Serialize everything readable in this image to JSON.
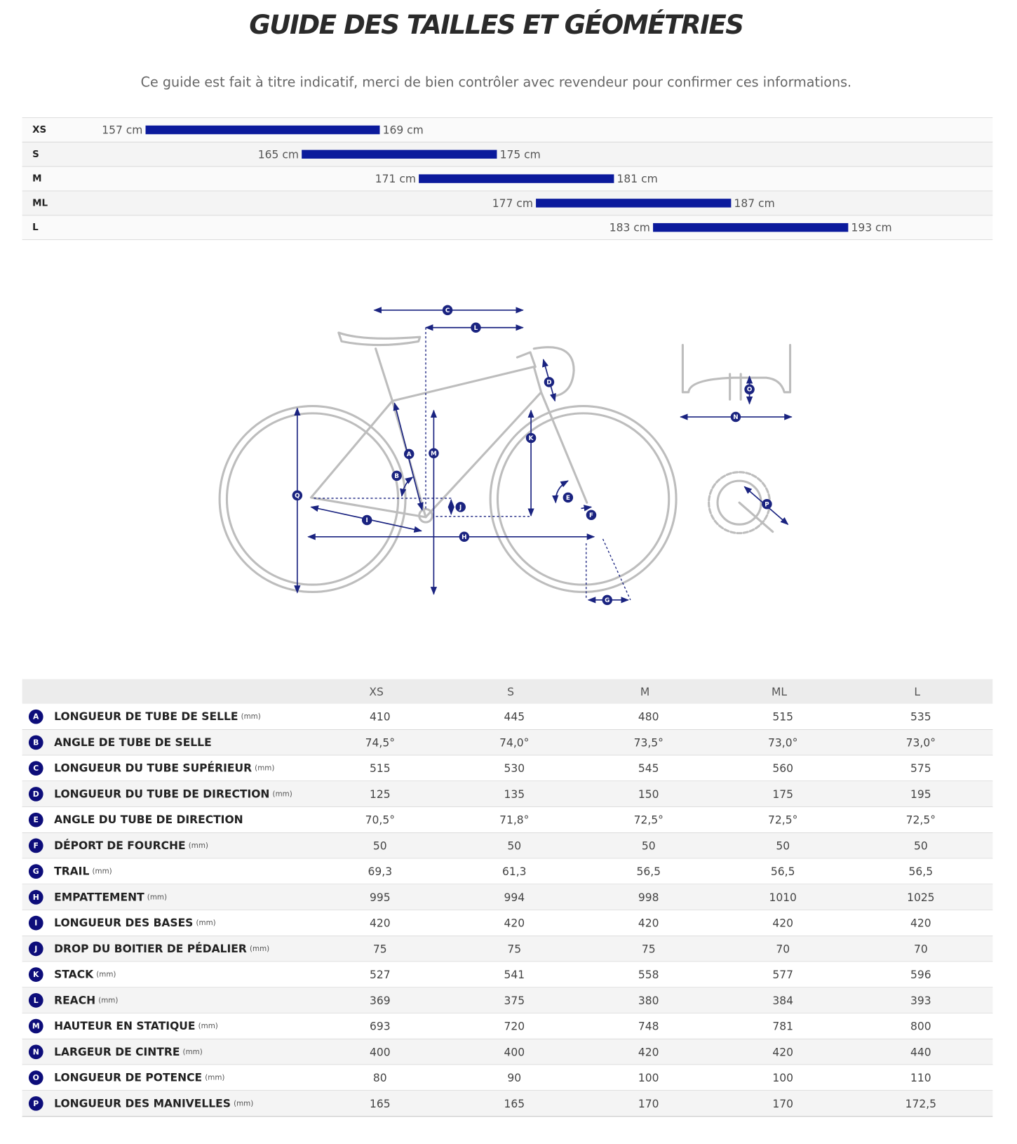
{
  "header": {
    "title": "GUIDE DES TAILLES ET GÉOMÉTRIES",
    "subtitle": "Ce guide est fait à titre indicatif, merci de bien contrôler avec revendeur pour confirmer ces informations."
  },
  "sizes": [
    {
      "size": "XS",
      "from": {
        "value": 157,
        "label": "157 cm"
      },
      "to": {
        "value": 169,
        "label": "169 cm"
      }
    },
    {
      "size": "S",
      "from": {
        "value": 165,
        "label": "165 cm"
      },
      "to": {
        "value": 175,
        "label": "175 cm"
      }
    },
    {
      "size": "M",
      "from": {
        "value": 171,
        "label": "171 cm"
      },
      "to": {
        "value": 181,
        "label": "181 cm"
      }
    },
    {
      "size": "ML",
      "from": {
        "value": 177,
        "label": "177 cm"
      },
      "to": {
        "value": 187,
        "label": "187 cm"
      }
    },
    {
      "size": "L",
      "from": {
        "value": 183,
        "label": "183 cm"
      },
      "to": {
        "value": 193,
        "label": "193 cm"
      }
    }
  ],
  "diagram": {
    "extra_labels": [
      "Q"
    ]
  },
  "table": {
    "columns": [
      "XS",
      "S",
      "M",
      "ML",
      "L"
    ],
    "rows": [
      {
        "letter": "A",
        "name": "LONGUEUR DE TUBE DE SELLE",
        "unit": "(mm)",
        "values": [
          "410",
          "445",
          "480",
          "515",
          "535"
        ]
      },
      {
        "letter": "B",
        "name": "ANGLE DE TUBE DE SELLE",
        "values": [
          "74,5°",
          "74,0°",
          "73,5°",
          "73,0°",
          "73,0°"
        ]
      },
      {
        "letter": "C",
        "name": "LONGUEUR DU TUBE SUPÉRIEUR",
        "unit": "(mm)",
        "values": [
          "515",
          "530",
          "545",
          "560",
          "575"
        ]
      },
      {
        "letter": "D",
        "name": "LONGUEUR DU TUBE DE DIRECTION",
        "unit": "(mm)",
        "values": [
          "125",
          "135",
          "150",
          "175",
          "195"
        ]
      },
      {
        "letter": "E",
        "name": "ANGLE DU TUBE DE DIRECTION",
        "values": [
          "70,5°",
          "71,8°",
          "72,5°",
          "72,5°",
          "72,5°"
        ]
      },
      {
        "letter": "F",
        "name": "DÉPORT DE FOURCHE",
        "unit": "(mm)",
        "values": [
          "50",
          "50",
          "50",
          "50",
          "50"
        ]
      },
      {
        "letter": "G",
        "name": "TRAIL",
        "unit": "(mm)",
        "values": [
          "69,3",
          "61,3",
          "56,5",
          "56,5",
          "56,5"
        ]
      },
      {
        "letter": "H",
        "name": "EMPATTEMENT",
        "unit": "(mm)",
        "values": [
          "995",
          "994",
          "998",
          "1010",
          "1025"
        ]
      },
      {
        "letter": "I",
        "name": "LONGUEUR DES BASES",
        "unit": "(mm)",
        "values": [
          "420",
          "420",
          "420",
          "420",
          "420"
        ]
      },
      {
        "letter": "J",
        "name": "DROP DU BOITIER DE PÉDALIER",
        "unit": "(mm)",
        "values": [
          "75",
          "75",
          "75",
          "70",
          "70"
        ]
      },
      {
        "letter": "K",
        "name": "STACK",
        "unit": "(mm)",
        "values": [
          "527",
          "541",
          "558",
          "577",
          "596"
        ]
      },
      {
        "letter": "L",
        "name": "REACH",
        "unit": "(mm)",
        "values": [
          "369",
          "375",
          "380",
          "384",
          "393"
        ]
      },
      {
        "letter": "M",
        "name": "HAUTEUR EN STATIQUE",
        "unit": "(mm)",
        "values": [
          "693",
          "720",
          "748",
          "781",
          "800"
        ]
      },
      {
        "letter": "N",
        "name": "LARGEUR DE CINTRE",
        "unit": "(mm)",
        "values": [
          "400",
          "400",
          "420",
          "420",
          "440"
        ]
      },
      {
        "letter": "O",
        "name": "LONGUEUR DE POTENCE",
        "unit": "(mm)",
        "values": [
          "80",
          "90",
          "100",
          "100",
          "110"
        ]
      },
      {
        "letter": "P",
        "name": "LONGUEUR DES MANIVELLES",
        "unit": "(mm)",
        "values": [
          "165",
          "165",
          "170",
          "170",
          "172,5"
        ]
      }
    ]
  }
}
